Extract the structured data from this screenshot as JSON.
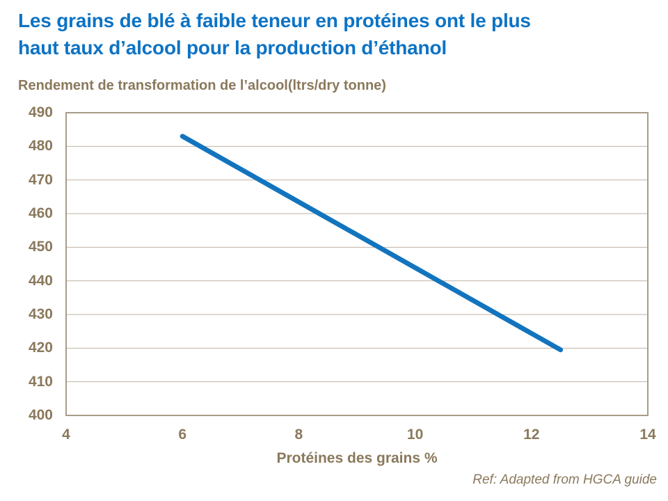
{
  "title": {
    "line1": "Les grains de blé à faible teneur en protéines ont le plus",
    "line2": "haut taux d’alcool pour la production d’éthanol"
  },
  "subtitle": "Rendement de transformation de l’alcool(ltrs/dry tonne)",
  "footer": "Ref: Adapted from HGCA guide",
  "colors": {
    "title_blue": "#0d73c4",
    "line_blue": "#1374be",
    "text_brown": "#8a795c",
    "gridline": "#bfb3a2",
    "plot_border": "#a99c87"
  },
  "chart_data": {
    "type": "line",
    "title": "Rendement de transformation de l’alcool(ltrs/dry tonne)",
    "xlabel": "Protéines des grains %",
    "ylabel": "Rendement de transformation de l’alcool (ltrs/dry tonne)",
    "xlim": [
      4,
      14
    ],
    "ylim": [
      400,
      490
    ],
    "x_ticks": [
      4,
      6,
      8,
      10,
      12,
      14
    ],
    "y_ticks": [
      400,
      410,
      420,
      430,
      440,
      450,
      460,
      470,
      480,
      490
    ],
    "grid": true,
    "legend_position": "none",
    "series": [
      {
        "name": "Rendement de transformation de l’alcool",
        "x": [
          6,
          12.5
        ],
        "y": [
          483,
          419.5
        ]
      }
    ]
  }
}
